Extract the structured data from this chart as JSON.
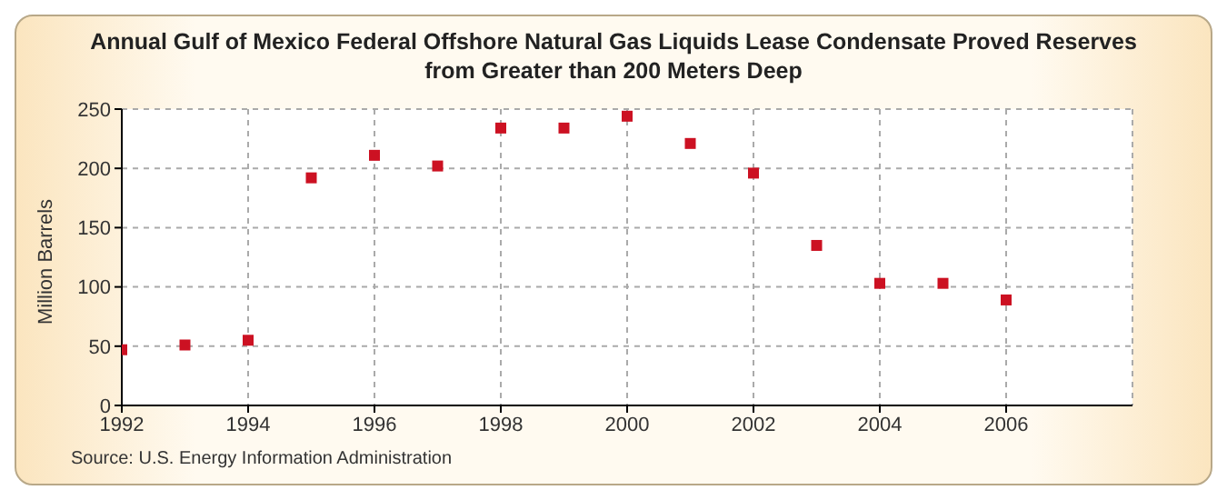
{
  "chart_data": {
    "type": "scatter",
    "title": "Annual Gulf of Mexico Federal Offshore Natural Gas Liquids Lease Condensate Proved Reserves from Greater than 200 Meters Deep",
    "ylabel": "Million Barrels",
    "annotations": [
      "Source: U.S. Energy Information Administration"
    ],
    "x": [
      1992,
      1993,
      1994,
      1995,
      1996,
      1997,
      1998,
      1999,
      2000,
      2001,
      2002,
      2003,
      2004,
      2005,
      2006
    ],
    "series": [
      {
        "color": "#cc1122",
        "values": [
          47,
          51,
          55,
          192,
          211,
          202,
          234,
          234,
          244,
          221,
          196,
          135,
          103,
          103,
          89
        ]
      }
    ],
    "xlim": [
      1992,
      2008
    ],
    "xticks": [
      1992,
      1994,
      1996,
      1998,
      2000,
      2002,
      2004,
      2006
    ],
    "ylim": [
      0,
      250
    ],
    "yticks": [
      0,
      50,
      100,
      150,
      200,
      250
    ],
    "grid": true,
    "marker": "square"
  }
}
